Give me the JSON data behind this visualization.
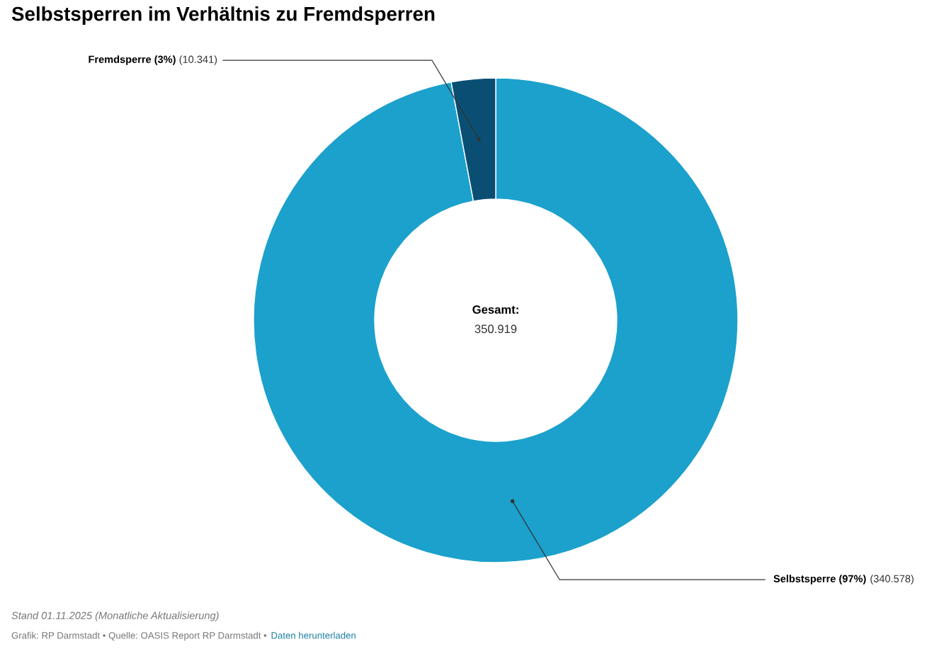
{
  "chart_data": {
    "type": "donut",
    "title": "Selbstsperren im Verhältnis zu Fremdsperren",
    "categories": [
      "Selbstsperre (97%)",
      "Fremdsperre (3%)"
    ],
    "values": [
      340578,
      10341
    ],
    "value_labels": [
      "(340.578)",
      "(10.341)"
    ],
    "colors": [
      "#1ba1cc",
      "#0a4f73"
    ],
    "annotations": [
      "Gesamt:",
      "350.919",
      "Stand 01.11.2025 (Monatliche Aktualisierung)",
      "Grafik: RP Darmstadt • Quelle: OASIS Report RP Darmstadt •",
      "Daten herunterladen"
    ]
  }
}
